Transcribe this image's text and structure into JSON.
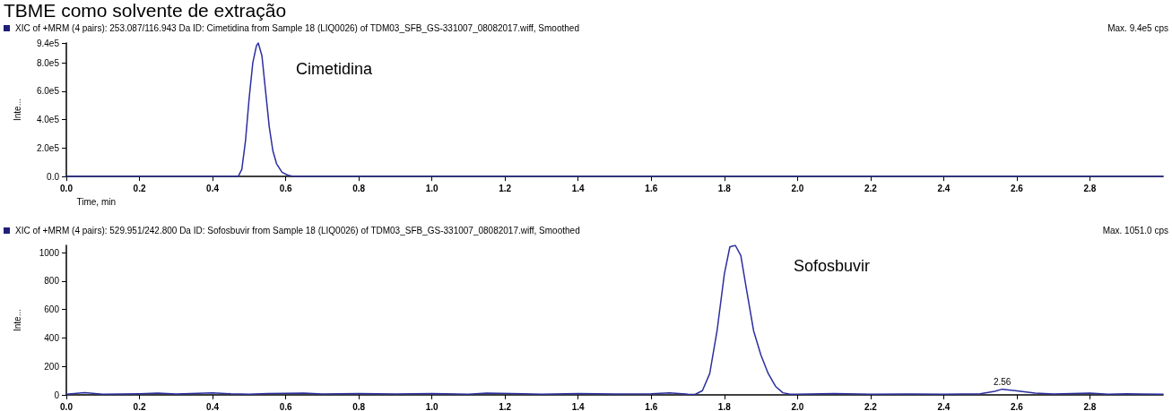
{
  "chart_data": [
    {
      "type": "line",
      "title": "TBME como solvente de extração",
      "subtitle": "XIC of +MRM (4 pairs): 253.087/116.943 Da ID: Cimetidina from Sample 18 (LIQ0026) of TDM03_SFB_GS-331007_08082017.wiff, Smoothed",
      "xlabel": "Time, min",
      "ylabel": "Inte...",
      "annotations": [
        "Max. 9.4e5 cps",
        "Cimetidina"
      ],
      "xlim": [
        0,
        3.0
      ],
      "ylim": [
        0,
        940000
      ],
      "xticks": [
        {
          "value": 0,
          "label": "0.0"
        },
        {
          "value": 0.2,
          "label": "0.2"
        },
        {
          "value": 0.4,
          "label": "0.4"
        },
        {
          "value": 0.6,
          "label": "0.6"
        },
        {
          "value": 0.8,
          "label": "0.8"
        },
        {
          "value": 1.0,
          "label": "1.0"
        },
        {
          "value": 1.2,
          "label": "1.2"
        },
        {
          "value": 1.4,
          "label": "1.4"
        },
        {
          "value": 1.6,
          "label": "1.6"
        },
        {
          "value": 1.8,
          "label": "1.8"
        },
        {
          "value": 2.0,
          "label": "2.0"
        },
        {
          "value": 2.2,
          "label": "2.2"
        },
        {
          "value": 2.4,
          "label": "2.4"
        },
        {
          "value": 2.6,
          "label": "2.6"
        },
        {
          "value": 2.8,
          "label": "2.8"
        }
      ],
      "yticks": [
        {
          "value": 0,
          "label": "0.0"
        },
        {
          "value": 200000,
          "label": "2.0e5"
        },
        {
          "value": 400000,
          "label": "4.0e5"
        },
        {
          "value": 600000,
          "label": "6.0e5"
        },
        {
          "value": 800000,
          "label": "8.0e5"
        },
        {
          "value": 940000,
          "label": "9.4e5"
        }
      ],
      "grid": false,
      "marker": "none",
      "series": [
        {
          "color": "#2b2f9e",
          "x": [
            0,
            0.47,
            0.48,
            0.49,
            0.5,
            0.51,
            0.52,
            0.525,
            0.535,
            0.545,
            0.555,
            0.565,
            0.575,
            0.59,
            0.605,
            0.62,
            3.0
          ],
          "values": [
            0,
            0,
            50000,
            250000,
            550000,
            800000,
            920000,
            940000,
            850000,
            600000,
            350000,
            180000,
            90000,
            30000,
            10000,
            0,
            0
          ]
        }
      ]
    },
    {
      "type": "line",
      "subtitle": "XIC of +MRM (4 pairs): 529.951/242.800 Da ID: Sofosbuvir from Sample 18 (LIQ0026) of TDM03_SFB_GS-331007_08082017.wiff, Smoothed",
      "ylabel": "Inte...",
      "annotations": [
        "Max. 1051.0 cps",
        "Sofosbuvir",
        {
          "text": "2.56",
          "x": 2.56,
          "y": 40
        }
      ],
      "xlim": [
        0,
        3.0
      ],
      "ylim": [
        0,
        1051
      ],
      "xticks": [
        {
          "value": 0,
          "label": "0.0"
        },
        {
          "value": 0.2,
          "label": "0.2"
        },
        {
          "value": 0.4,
          "label": "0.4"
        },
        {
          "value": 0.6,
          "label": "0.6"
        },
        {
          "value": 0.8,
          "label": "0.8"
        },
        {
          "value": 1.0,
          "label": "1.0"
        },
        {
          "value": 1.2,
          "label": "1.2"
        },
        {
          "value": 1.4,
          "label": "1.4"
        },
        {
          "value": 1.6,
          "label": "1.6"
        },
        {
          "value": 1.8,
          "label": "1.8"
        },
        {
          "value": 2.0,
          "label": "2.0"
        },
        {
          "value": 2.2,
          "label": "2.2"
        },
        {
          "value": 2.4,
          "label": "2.4"
        },
        {
          "value": 2.6,
          "label": "2.6"
        },
        {
          "value": 2.8,
          "label": "2.8"
        }
      ],
      "yticks": [
        0,
        200,
        400,
        600,
        800,
        1000
      ],
      "grid": false,
      "marker": "none",
      "series": [
        {
          "color": "#2b2f9e",
          "x": [
            0,
            0.05,
            0.1,
            0.2,
            0.25,
            0.3,
            0.4,
            0.45,
            0.5,
            0.55,
            0.65,
            0.7,
            0.8,
            0.9,
            1.0,
            1.1,
            1.15,
            1.25,
            1.3,
            1.4,
            1.5,
            1.6,
            1.65,
            1.7,
            1.72,
            1.74,
            1.76,
            1.78,
            1.8,
            1.815,
            1.83,
            1.845,
            1.86,
            1.88,
            1.9,
            1.92,
            1.94,
            1.96,
            1.98,
            2.0,
            2.1,
            2.2,
            2.3,
            2.4,
            2.5,
            2.54,
            2.56,
            2.6,
            2.65,
            2.7,
            2.8,
            2.85,
            2.9,
            3.0
          ],
          "values": [
            5,
            15,
            5,
            8,
            12,
            6,
            14,
            8,
            5,
            10,
            12,
            6,
            10,
            6,
            10,
            5,
            12,
            8,
            5,
            10,
            6,
            8,
            14,
            5,
            3,
            30,
            150,
            450,
            850,
            1040,
            1051,
            980,
            750,
            450,
            280,
            150,
            60,
            15,
            5,
            5,
            10,
            5,
            6,
            5,
            8,
            25,
            40,
            28,
            12,
            6,
            12,
            5,
            8,
            5
          ]
        }
      ]
    }
  ]
}
